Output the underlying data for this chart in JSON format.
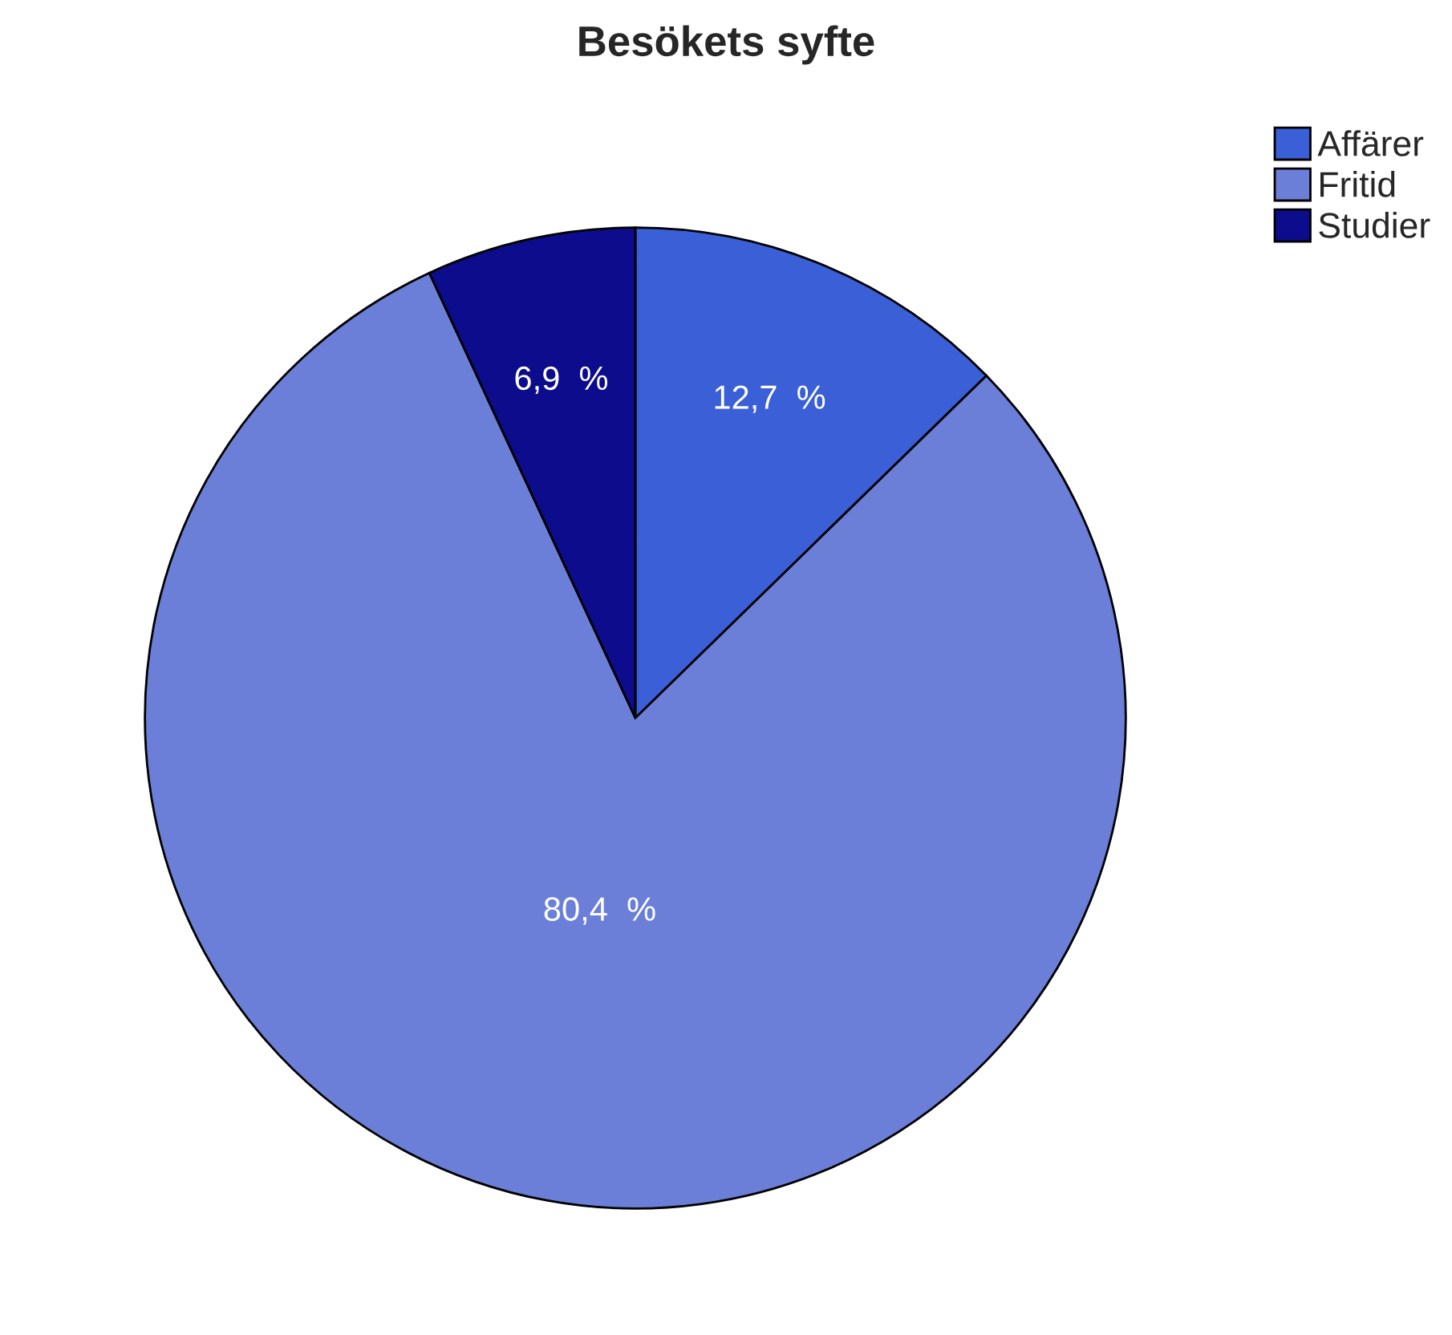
{
  "chart_data": {
    "type": "pie",
    "title": "Besökets syfte",
    "categories": [
      "Affärer",
      "Fritid",
      "Studier"
    ],
    "values": [
      12.7,
      80.4,
      6.9
    ],
    "value_labels": [
      "12,7  %",
      "80,4  %",
      "6,9  %"
    ],
    "colors": [
      "#3a5fd6",
      "#6b7fd9",
      "#0c0c8c"
    ],
    "legend": "top right"
  }
}
